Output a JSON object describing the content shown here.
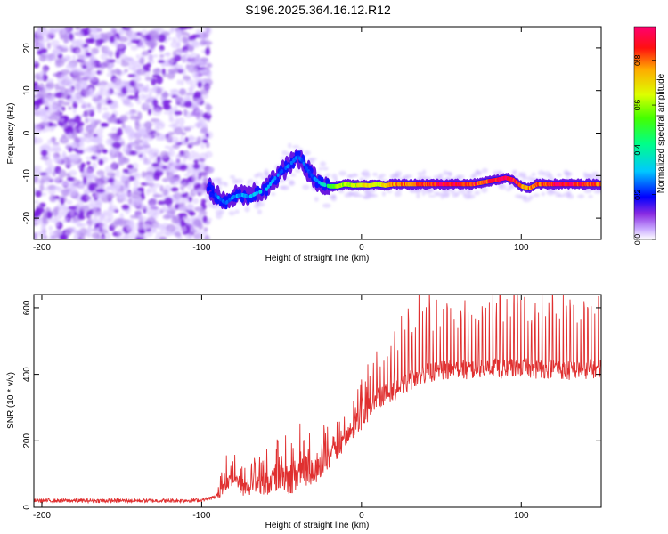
{
  "figure_title": "S196.2025.364.16.12.R12",
  "chart_data": [
    {
      "type": "heatmap",
      "title": "S196.2025.364.16.12.R12",
      "xlabel": "Height of straight line (km)",
      "ylabel": "Frequency (Hz)",
      "xlim": [
        -205,
        150
      ],
      "ylim": [
        -25,
        25
      ],
      "xticks": [
        -200,
        -100,
        0,
        100
      ],
      "xtick_labels": [
        "-200",
        "-100",
        "0",
        "100"
      ],
      "yticks": [
        -20,
        -10,
        0,
        10,
        20
      ],
      "ytick_labels": [
        "-20",
        "-10",
        "0",
        "10",
        "20"
      ],
      "noise_region_x": [
        -205,
        -95
      ],
      "ridge": {
        "x": [
          -95,
          -90,
          -85,
          -80,
          -75,
          -70,
          -65,
          -60,
          -55,
          -50,
          -45,
          -40,
          -37,
          -34,
          -30,
          -25,
          -20,
          -15,
          -10,
          -5,
          0,
          5,
          10,
          15,
          20,
          30,
          40,
          50,
          60,
          70,
          80,
          85,
          90,
          95,
          100,
          105,
          110,
          120,
          130,
          140,
          150
        ],
        "freq": [
          -13,
          -15,
          -16.5,
          -15,
          -14.5,
          -15,
          -14,
          -13.5,
          -11,
          -9,
          -7.5,
          -5.5,
          -6.5,
          -8.5,
          -10.5,
          -12,
          -12.5,
          -12.5,
          -12,
          -12.3,
          -12.2,
          -12.3,
          -12,
          -12.3,
          -12,
          -12,
          -12,
          -12,
          -12,
          -12,
          -11.3,
          -11,
          -10.5,
          -11,
          -12.5,
          -13,
          -12,
          -12,
          -12,
          -12,
          -12
        ],
        "amplitude": [
          0.2,
          0.28,
          0.25,
          0.3,
          0.28,
          0.3,
          0.35,
          0.35,
          0.3,
          0.25,
          0.3,
          0.25,
          0.25,
          0.25,
          0.25,
          0.35,
          0.5,
          0.6,
          0.65,
          0.65,
          0.7,
          0.7,
          0.7,
          0.75,
          0.8,
          0.85,
          0.9,
          0.95,
          0.95,
          0.9,
          0.9,
          0.95,
          0.95,
          0.9,
          0.85,
          0.8,
          0.85,
          0.95,
          0.95,
          0.9,
          0.85
        ]
      },
      "colorbar": {
        "label": "Normalized spectral amplitude",
        "range": [
          0.0,
          0.95
        ],
        "ticks": [
          0.0,
          0.2,
          0.4,
          0.6,
          0.8
        ],
        "tick_labels": [
          "0.0",
          "0.2",
          "0.4",
          "0.6",
          "0.8"
        ],
        "colors": [
          "#ffffff",
          "#c8a8ff",
          "#8a2be2",
          "#4b00ff",
          "#0000ff",
          "#00c8ff",
          "#00ffaa",
          "#00ff00",
          "#aaff00",
          "#ffff00",
          "#ffaa00",
          "#ff0000",
          "#ff0066"
        ]
      }
    },
    {
      "type": "line",
      "title": "",
      "xlabel": "Height of straight line (km)",
      "ylabel": "SNR (10 * v/v)",
      "xlim": [
        -205,
        150
      ],
      "ylim": [
        0,
        640
      ],
      "xticks": [
        -200,
        -100,
        0,
        100
      ],
      "xtick_labels": [
        "-200",
        "-100",
        "0",
        "100"
      ],
      "yticks": [
        0,
        200,
        400,
        600
      ],
      "ytick_labels": [
        "0",
        "200",
        "400",
        "600"
      ],
      "series": [
        {
          "name": "SNR",
          "color": "#e03030",
          "x": [
            -205,
            -190,
            -175,
            -160,
            -145,
            -130,
            -115,
            -100,
            -92,
            -85,
            -80,
            -75,
            -70,
            -65,
            -60,
            -55,
            -50,
            -45,
            -40,
            -35,
            -30,
            -25,
            -20,
            -15,
            -10,
            -5,
            0,
            5,
            10,
            15,
            20,
            25,
            30,
            35,
            40,
            50,
            60,
            70,
            80,
            90,
            100,
            110,
            120,
            130,
            140,
            150
          ],
          "y": [
            20,
            20,
            20,
            20,
            20,
            20,
            20,
            22,
            30,
            60,
            90,
            55,
            60,
            70,
            65,
            80,
            95,
            85,
            100,
            110,
            95,
            130,
            150,
            175,
            200,
            240,
            270,
            300,
            330,
            340,
            345,
            360,
            380,
            395,
            405,
            410,
            415,
            410,
            420,
            415,
            420,
            415,
            420,
            410,
            415,
            420
          ],
          "spike_amplitude": [
            5,
            5,
            5,
            5,
            5,
            5,
            5,
            8,
            20,
            80,
            60,
            70,
            80,
            90,
            100,
            120,
            140,
            160,
            170,
            160,
            150,
            120,
            110,
            100,
            100,
            120,
            140,
            120,
            100,
            120,
            140,
            180,
            200,
            200,
            190,
            190,
            190,
            200,
            200,
            210,
            190,
            190,
            190,
            180,
            170,
            170
          ]
        }
      ]
    }
  ]
}
